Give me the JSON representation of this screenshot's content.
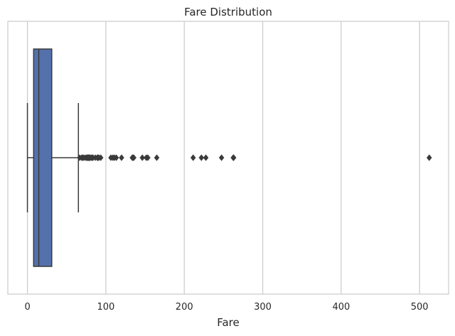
{
  "chart_data": {
    "type": "box",
    "title": "Fare Distribution",
    "xlabel": "Fare",
    "ylabel": "",
    "xlim": [
      -25,
      537
    ],
    "xticks": [
      0,
      100,
      200,
      300,
      400,
      500
    ],
    "grid": true,
    "orientation": "horizontal",
    "box": {
      "whisker_low": 0,
      "q1": 7.9,
      "median": 14.45,
      "q3": 31,
      "whisker_high": 65,
      "fill_color": "#5471ab",
      "line_color": "#3a3a3a"
    },
    "outliers": [
      66.6,
      69.3,
      69.55,
      71,
      71.3,
      73.5,
      75.25,
      76.3,
      76.7,
      77.3,
      77.9,
      78.3,
      78.85,
      79.2,
      79.65,
      80,
      81.9,
      82.2,
      83.2,
      83.5,
      86.5,
      89.1,
      90,
      91.1,
      93.5,
      106.4,
      108.9,
      110.9,
      113.3,
      120,
      133.7,
      134.5,
      135.6,
      146.5,
      151.6,
      153.5,
      164.9,
      211.3,
      221.8,
      227.5,
      247.5,
      262.4,
      263,
      512.3
    ]
  }
}
